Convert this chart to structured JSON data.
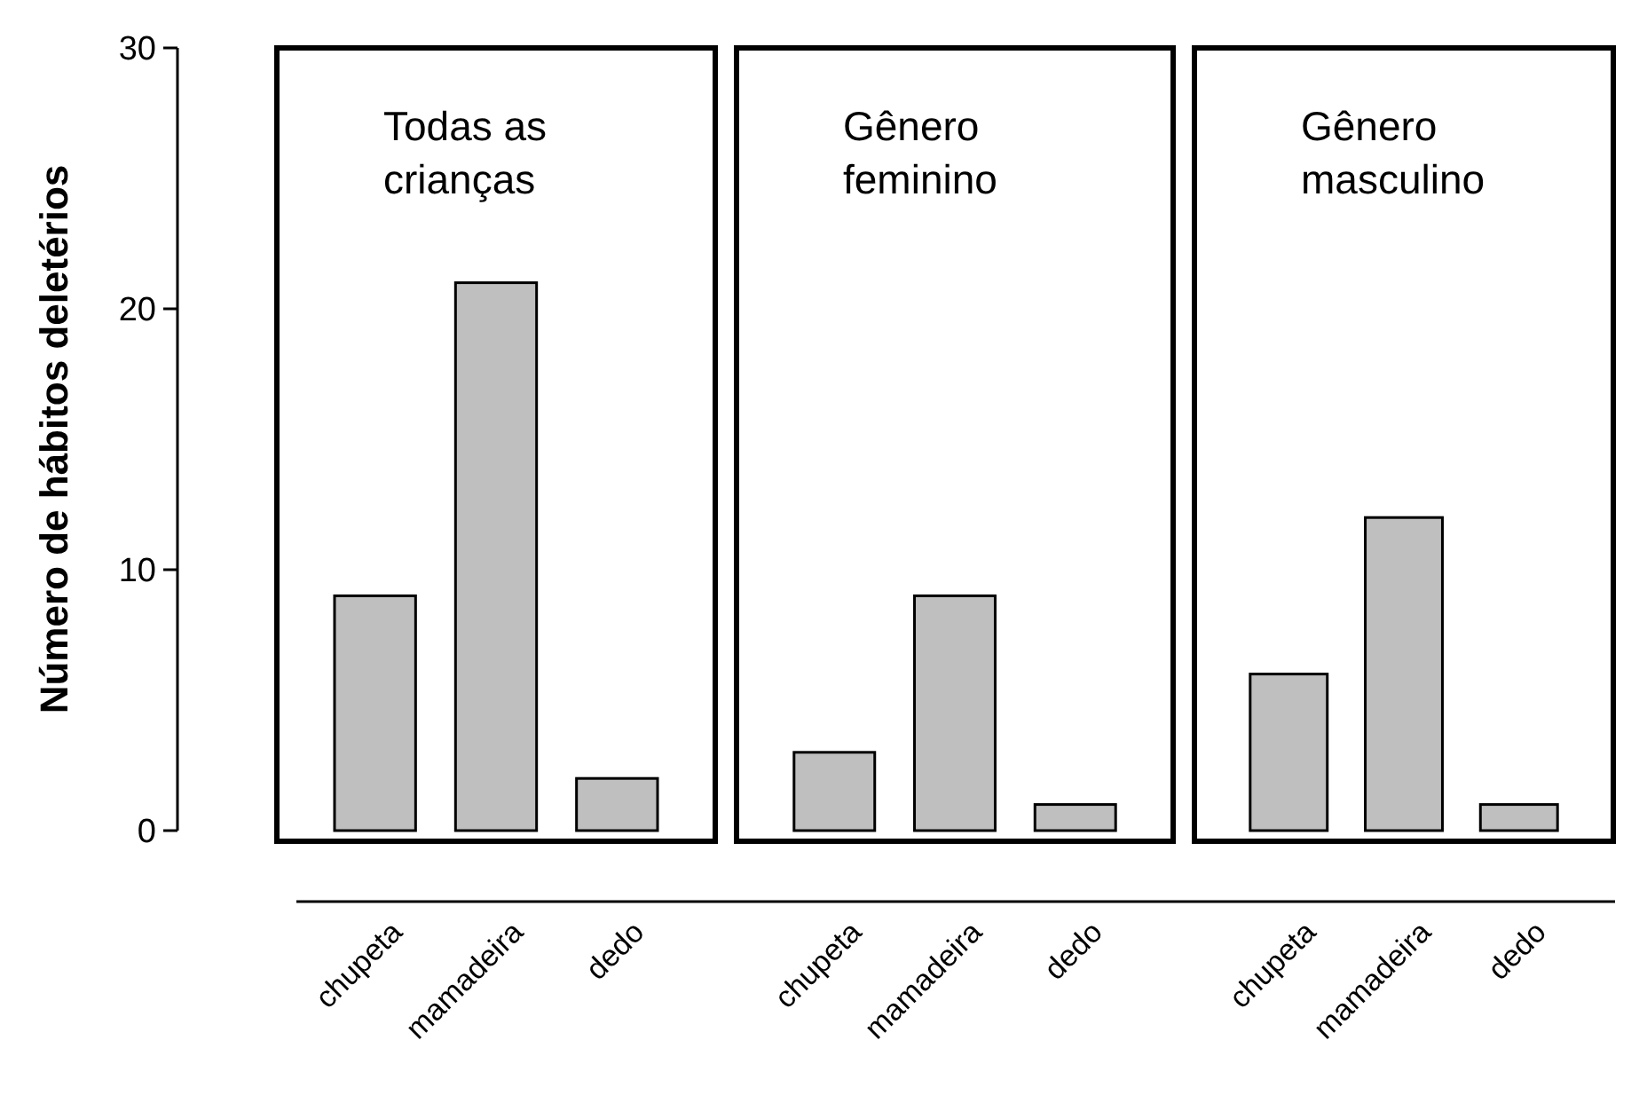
{
  "chart_data": [
    {
      "type": "bar",
      "title": "Todas as crianças",
      "ylabel": "Número de hábitos deletérios",
      "categories": [
        "chupeta",
        "mamadeira",
        "dedo"
      ],
      "values": [
        9,
        21,
        2
      ],
      "color": "#bfbfbf",
      "ylim": [
        0,
        30
      ],
      "yticks": [
        0,
        10,
        20,
        30
      ],
      "grid": false
    },
    {
      "type": "bar",
      "title": "Gênero feminino",
      "categories": [
        "chupeta",
        "mamadeira",
        "dedo"
      ],
      "values": [
        3,
        9,
        1
      ],
      "color": "#bfbfbf",
      "ylim": [
        0,
        30
      ],
      "tick_labels": "x",
      "grid": false
    },
    {
      "type": "bar",
      "title": "Gênero masculino",
      "categories": [
        "chupeta",
        "mamadeira",
        "dedo"
      ],
      "values": [
        6,
        12,
        1
      ],
      "color": "#bfbfbf",
      "ylim": [
        0,
        30
      ],
      "tick_labels": "x",
      "grid": false
    }
  ]
}
